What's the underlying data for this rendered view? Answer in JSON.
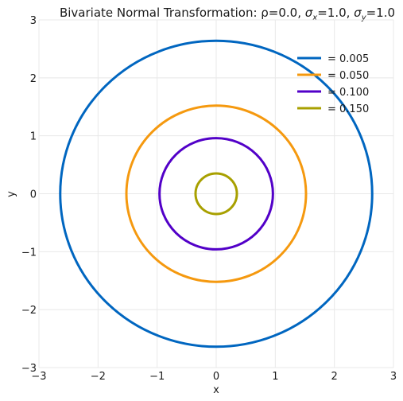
{
  "chart_data": {
    "type": "line",
    "title": "Bivariate Normal Transformation: ρ=0.0, σₓ=1.0, σᵧ=1.0",
    "title_parts": {
      "prefix": "Bivariate Normal Transformation: ρ=0.0, ",
      "sigma": "σ",
      "sub_x": "x",
      "val_x": "=1.0, ",
      "sub_y": "y",
      "val_y": "=1.0"
    },
    "xlabel": "x",
    "ylabel": "y",
    "xlim": [
      -3,
      3
    ],
    "ylim": [
      -3,
      3
    ],
    "x_ticks": [
      -3,
      -2,
      -1,
      0,
      1,
      2,
      3
    ],
    "y_ticks": [
      -3,
      -2,
      -1,
      0,
      1,
      2,
      3
    ],
    "x_tick_labels": [
      "−3",
      "−2",
      "−1",
      "0",
      "1",
      "2",
      "3"
    ],
    "y_tick_labels": [
      "−3",
      "−2",
      "−1",
      "0",
      "1",
      "2",
      "3"
    ],
    "grid": true,
    "legend_position": "top-right",
    "series": [
      {
        "name": " = 0.005",
        "shape": "circle",
        "center": [
          0,
          0
        ],
        "radius": 2.64,
        "color": "#0066c0"
      },
      {
        "name": " = 0.050",
        "shape": "circle",
        "center": [
          0,
          0
        ],
        "radius": 1.52,
        "color": "#f5990f"
      },
      {
        "name": " = 0.100",
        "shape": "circle",
        "center": [
          0,
          0
        ],
        "radius": 0.96,
        "color": "#5200c8"
      },
      {
        "name": " = 0.150",
        "shape": "circle",
        "center": [
          0,
          0
        ],
        "radius": 0.35,
        "color": "#a8a000"
      }
    ]
  }
}
